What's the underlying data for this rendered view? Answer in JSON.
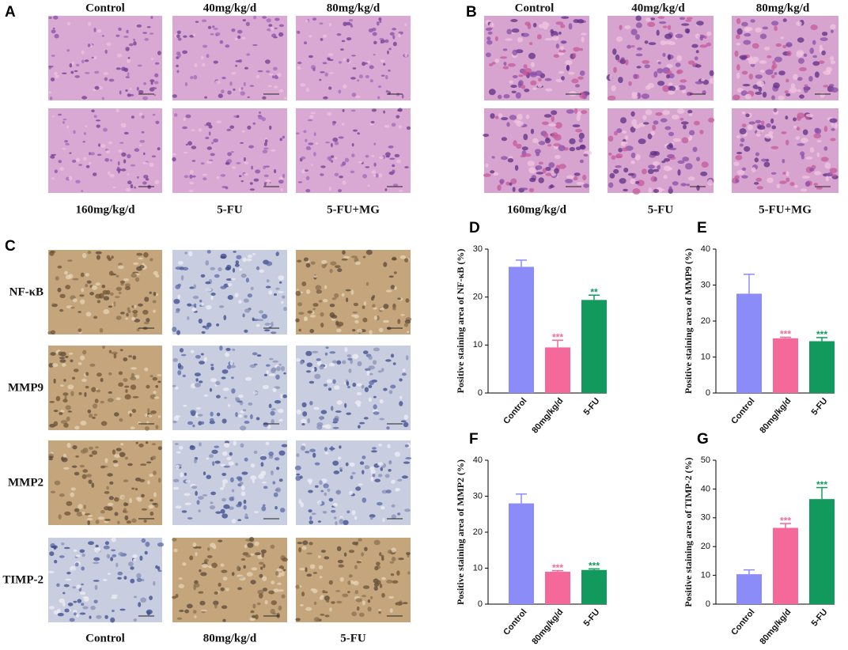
{
  "panel_labels": [
    "A",
    "B",
    "C"
  ],
  "panel_a": {
    "top_labels": [
      "Control",
      "40mg/kg/d",
      "80mg/kg/d"
    ],
    "bottom_labels": [
      "160mg/kg/d",
      "5-FU",
      "5-FU+MG"
    ]
  },
  "panel_b": {
    "top_labels": [
      "Control",
      "40mg/kg/d",
      "80mg/kg/d"
    ],
    "bottom_labels": [
      "160mg/kg/d",
      "5-FU",
      "5-FU+MG"
    ]
  },
  "panel_c": {
    "row_labels": [
      "NF-κB",
      "MMP9",
      "MMP2",
      "TIMP-2"
    ],
    "bottom_labels": [
      "Control",
      "80mg/kg/d",
      "5-FU"
    ]
  },
  "chart_data": [
    {
      "type": "bar",
      "panel": "D",
      "ylabel": "Positive staining area of NF-κB (%)",
      "categories": [
        "Control",
        "80mg/kg/d",
        "5-FU"
      ],
      "values": [
        26.3,
        9.5,
        19.4
      ],
      "errors": [
        1.4,
        1.5,
        1.0
      ],
      "annotations": [
        null,
        "***",
        "**"
      ],
      "colors": [
        "#8b8cf7",
        "#f5699a",
        "#129a5e"
      ],
      "ylim": [
        0,
        30
      ],
      "yticks": [
        0,
        10,
        20,
        30
      ]
    },
    {
      "type": "bar",
      "panel": "E",
      "ylabel": "Positive staining area of MMP9 (%)",
      "categories": [
        "Control",
        "80mg/kg/d",
        "5-FU"
      ],
      "values": [
        27.6,
        15.2,
        14.4
      ],
      "errors": [
        5.4,
        0.3,
        1.0
      ],
      "annotations": [
        null,
        "***",
        "***"
      ],
      "colors": [
        "#8b8cf7",
        "#f5699a",
        "#129a5e"
      ],
      "ylim": [
        0,
        40
      ],
      "yticks": [
        0,
        10,
        20,
        30,
        40
      ]
    },
    {
      "type": "bar",
      "panel": "F",
      "ylabel": "Positive staining area of MMP2 (%)",
      "categories": [
        "Control",
        "80mg/kg/d",
        "5-FU"
      ],
      "values": [
        28.0,
        9.0,
        9.5
      ],
      "errors": [
        2.6,
        0.3,
        0.3
      ],
      "annotations": [
        null,
        "***",
        "***"
      ],
      "colors": [
        "#8b8cf7",
        "#f5699a",
        "#129a5e"
      ],
      "ylim": [
        0,
        40
      ],
      "yticks": [
        0,
        10,
        20,
        30,
        40
      ]
    },
    {
      "type": "bar",
      "panel": "G",
      "ylabel": "Positive staining area of TIMP-2 (%)",
      "categories": [
        "Control",
        "80mg/kg/d",
        "5-FU"
      ],
      "values": [
        10.4,
        26.5,
        36.5
      ],
      "errors": [
        1.5,
        1.5,
        4.0
      ],
      "annotations": [
        null,
        "***",
        "***"
      ],
      "colors": [
        "#8b8cf7",
        "#f5699a",
        "#129a5e"
      ],
      "ylim": [
        0,
        50
      ],
      "yticks": [
        0,
        10,
        20,
        30,
        40,
        50
      ]
    }
  ]
}
